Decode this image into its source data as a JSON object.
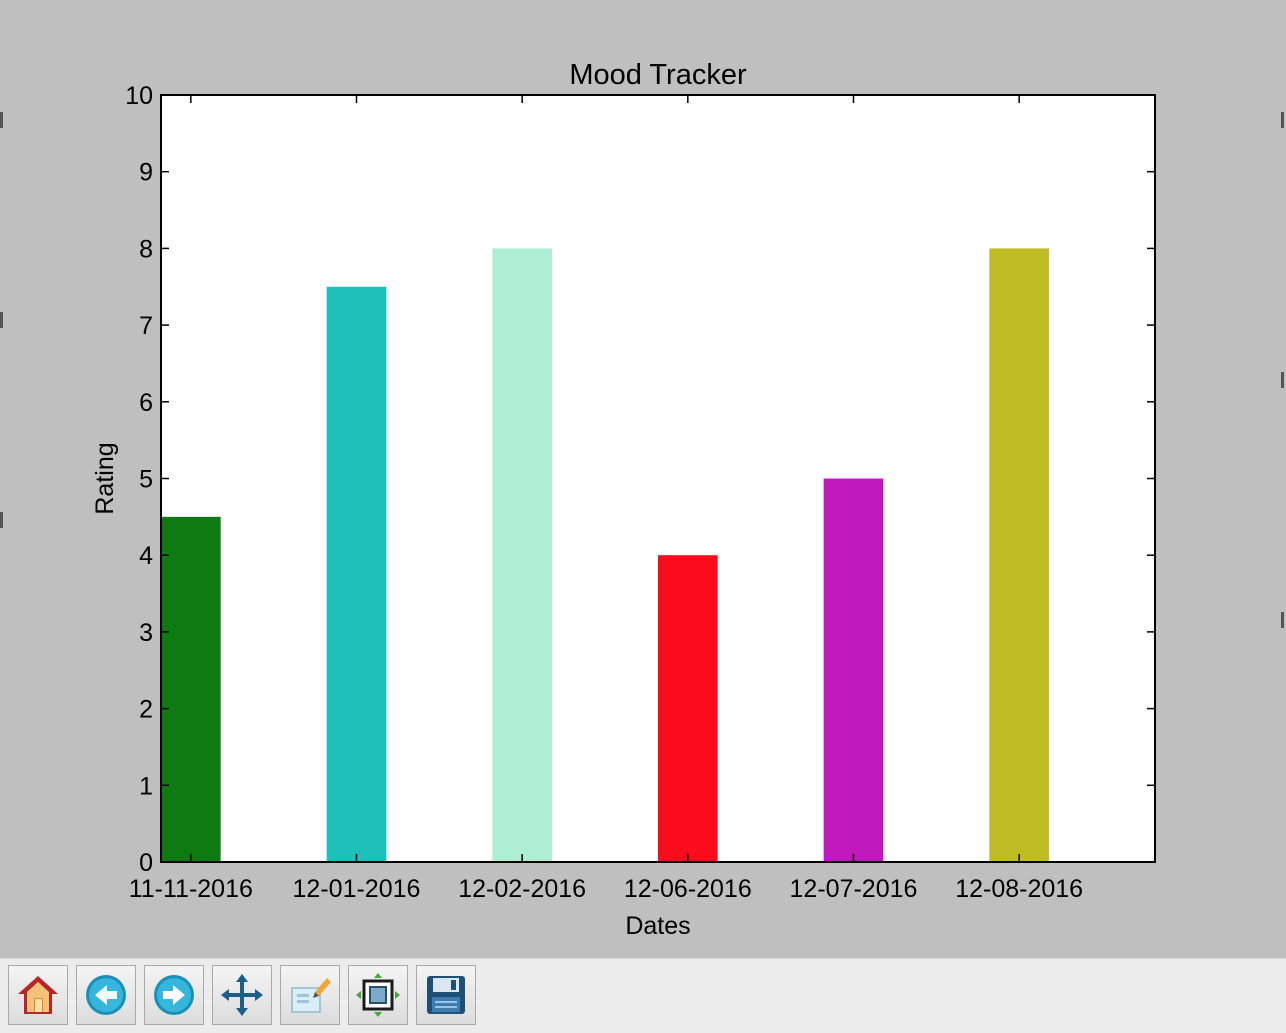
{
  "chart_data": {
    "type": "bar",
    "title": "Mood Tracker",
    "xlabel": "Dates",
    "ylabel": "Rating",
    "categories": [
      "11-11-2016",
      "12-01-2016",
      "12-02-2016",
      "12-06-2016",
      "12-07-2016",
      "12-08-2016"
    ],
    "values": [
      4.5,
      7.5,
      8,
      4,
      5,
      8
    ],
    "colors": [
      "#0e7b12",
      "#1fbfbc",
      "#aeeed4",
      "#fa0c1c",
      "#bf19be",
      "#bfbd24"
    ],
    "ylim": [
      0,
      10
    ],
    "yticks": [
      "0",
      "1",
      "2",
      "3",
      "4",
      "5",
      "6",
      "7",
      "8",
      "9",
      "10"
    ],
    "grid": false,
    "legend": "none"
  },
  "toolbar": {
    "buttons": [
      {
        "name": "home-button",
        "icon": "home-icon"
      },
      {
        "name": "back-button",
        "icon": "back-arrow-icon"
      },
      {
        "name": "forward-button",
        "icon": "forward-arrow-icon"
      },
      {
        "name": "pan-button",
        "icon": "move-arrows-icon"
      },
      {
        "name": "zoom-button",
        "icon": "zoom-rect-icon"
      },
      {
        "name": "subplots-button",
        "icon": "subplots-config-icon"
      },
      {
        "name": "save-button",
        "icon": "floppy-disk-icon"
      }
    ]
  }
}
